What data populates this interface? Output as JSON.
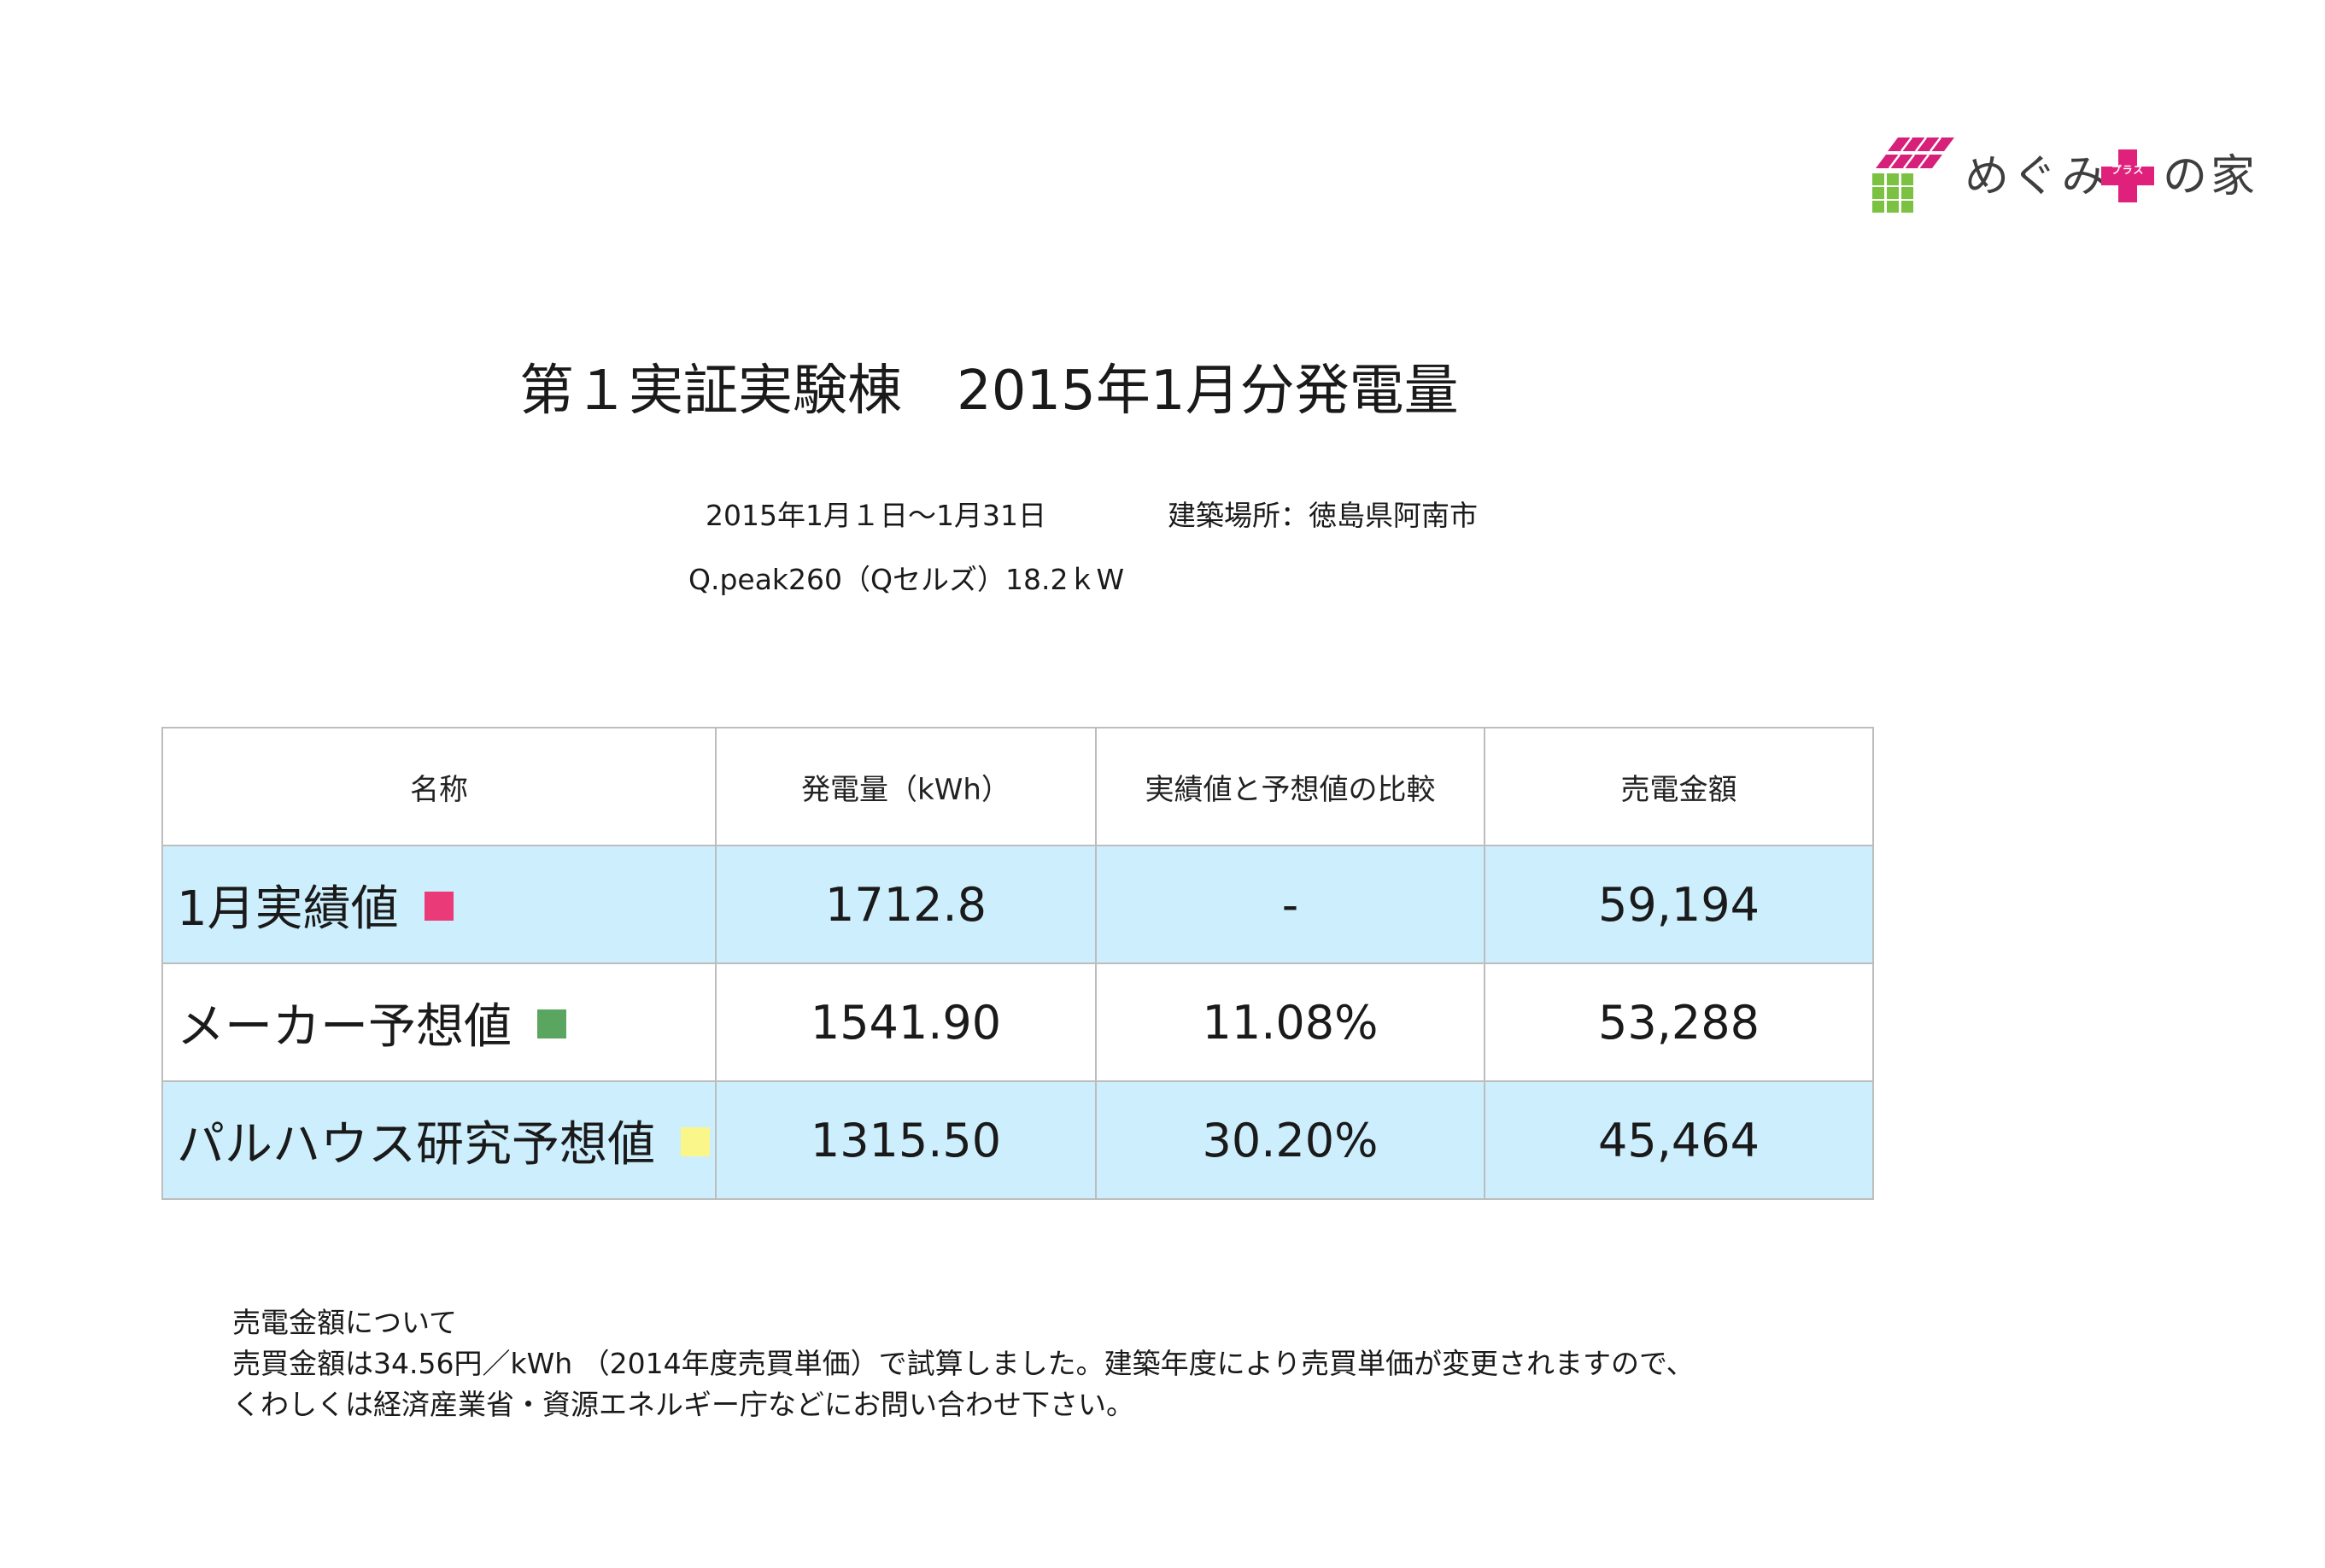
{
  "logo": {
    "text_main": "めぐみ",
    "plus_label": "プラス",
    "text_tail": "の家",
    "colors": {
      "roof": "#d6207a",
      "walls": "#7cc242",
      "plus": "#e0217c"
    }
  },
  "header": {
    "title": "第１実証実験棟　2015年1月分発電量",
    "period": "2015年1月１日〜1月31日",
    "location": "建築場所：徳島県阿南市",
    "panel": "Q.peak260（Qセルズ）18.2ｋW"
  },
  "table": {
    "headers": [
      "名称",
      "発電量（kWh）",
      "実績値と予想値の比較",
      "売電金額"
    ],
    "rows": [
      {
        "name": "1月実績値",
        "swatch_color": "#ea3a78",
        "generation": "1712.8",
        "comparison": "-",
        "sales": "59,194",
        "shaded": true
      },
      {
        "name": "メーカー予想値",
        "swatch_color": "#5aa660",
        "generation": "1541.90",
        "comparison": "11.08%",
        "sales": "53,288",
        "shaded": false
      },
      {
        "name": "パルハウス研究予想値",
        "swatch_color": "#fbf68a",
        "generation": "1315.50",
        "comparison": "30.20%",
        "sales": "45,464",
        "shaded": true
      }
    ]
  },
  "notes": {
    "line1": "売電金額について",
    "line2": "売買金額は34.56円／kWh （2014年度売買単価）で試算しました。建築年度により売買単価が変更されますので、",
    "line3": "くわしくは経済産業省・資源エネルギー庁などにお問い合わせ下さい。"
  }
}
